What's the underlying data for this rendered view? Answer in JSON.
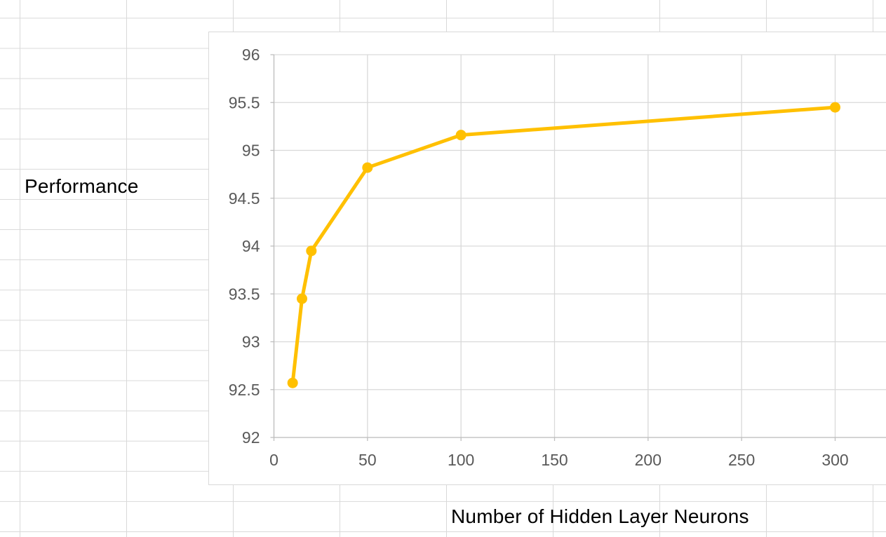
{
  "labels": {
    "y_axis_title": "Performance",
    "x_axis_title": "Number of Hidden Layer Neurons"
  },
  "colors": {
    "series": "#FFC000",
    "gridline": "#D9D9D9",
    "axis_line": "#BFBFBF",
    "tick_label": "#595959",
    "sheet_gridline": "#D9D9D9",
    "chart_background": "#FFFFFF",
    "title_text": "#000000"
  },
  "chart_data": {
    "type": "line",
    "title": "",
    "xlabel": "Number of Hidden Layer Neurons",
    "ylabel": "Performance",
    "series": [
      {
        "name": "Performance",
        "color": "#FFC000",
        "marker": "circle",
        "points": [
          {
            "x": 10,
            "y": 92.57
          },
          {
            "x": 15,
            "y": 93.45
          },
          {
            "x": 20,
            "y": 93.95
          },
          {
            "x": 50,
            "y": 94.82
          },
          {
            "x": 100,
            "y": 95.16
          },
          {
            "x": 300,
            "y": 95.45
          }
        ]
      }
    ],
    "xlim": [
      0,
      327.5
    ],
    "ylim": [
      92,
      96
    ],
    "x_ticks": [
      0,
      50,
      100,
      150,
      200,
      250,
      300
    ],
    "y_ticks": [
      92,
      92.5,
      93,
      93.5,
      94,
      94.5,
      95,
      95.5,
      96
    ],
    "x_tick_labels": [
      "0",
      "50",
      "100",
      "150",
      "200",
      "250",
      "300"
    ],
    "y_tick_labels": [
      "92",
      "92.5",
      "93",
      "93.5",
      "94",
      "94.5",
      "95",
      "95.5",
      "96"
    ],
    "grid": true,
    "legend": false
  }
}
